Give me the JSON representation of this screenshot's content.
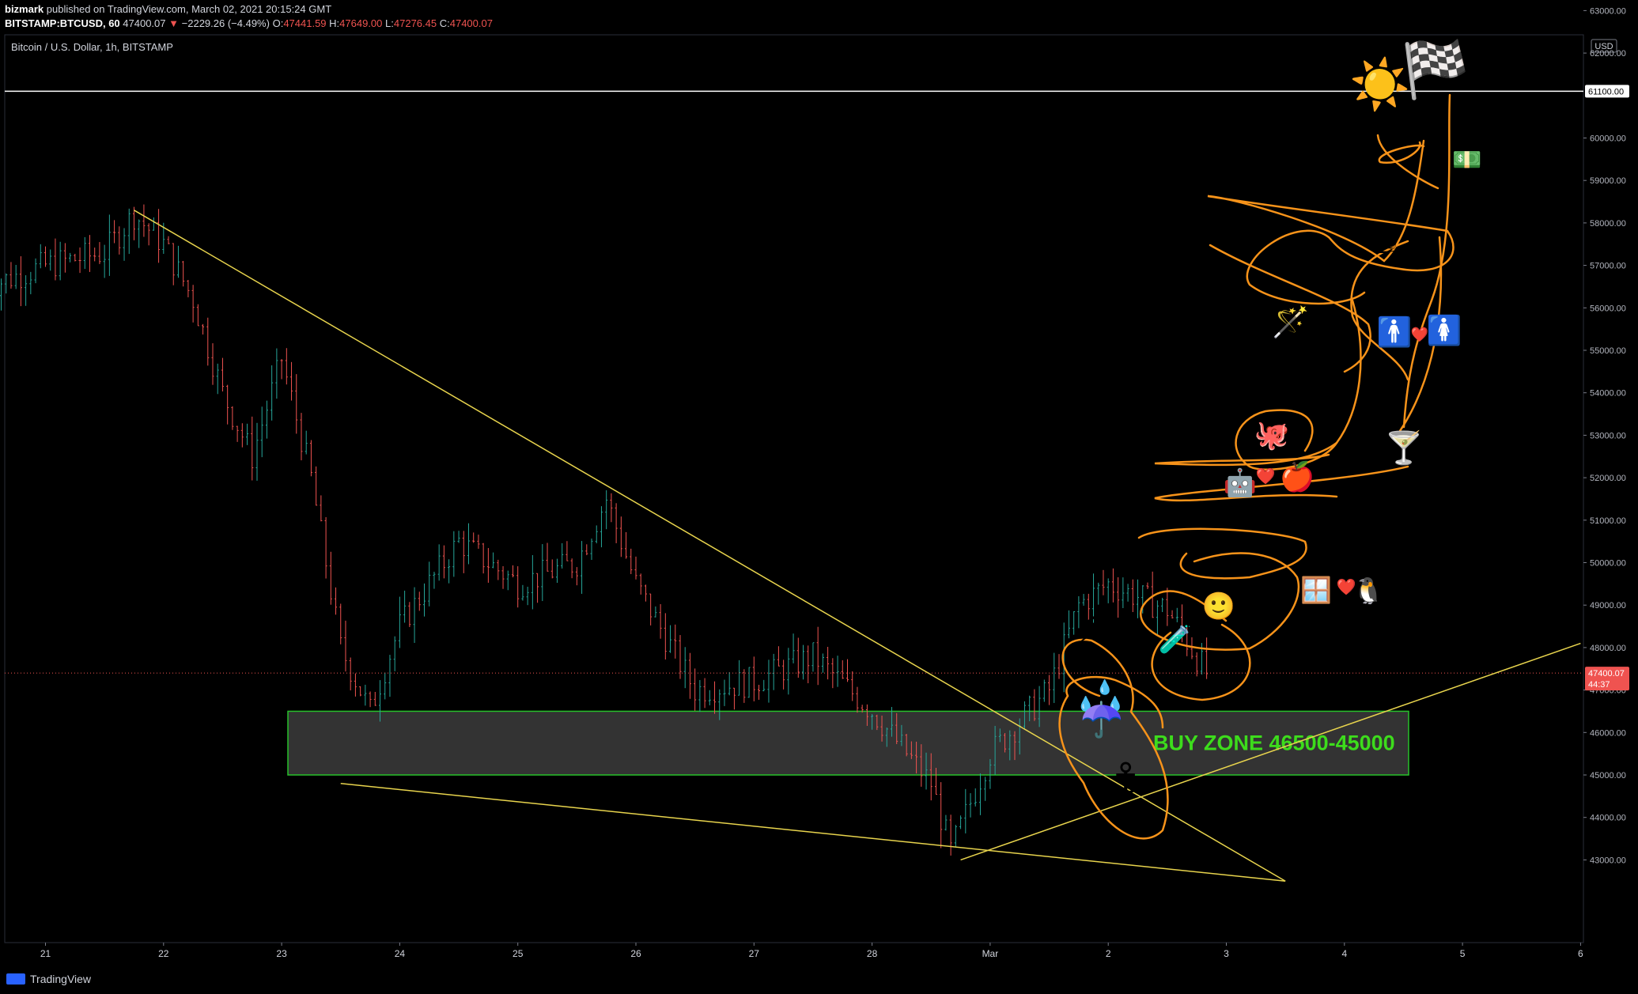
{
  "header": {
    "author": "bizmark",
    "published_text": "published on TradingView.com, March 02, 2021 20:15:24 GMT",
    "symbol_line": "BITSTAMP:BTCUSD, 60",
    "last_price": "47400.07",
    "change_arrow": "▼",
    "change": "−2229.26 (−4.49%)",
    "o_label": "O:",
    "o_value": "47441.59",
    "h_label": "H:",
    "h_value": "47649.00",
    "l_label": "L:",
    "l_value": "47276.45",
    "c_label": "C:",
    "c_value": "47400.07"
  },
  "footer": {
    "brand": "TradingView"
  },
  "colors": {
    "background": "#000000",
    "up": "#26a69a",
    "down": "#ef5350",
    "trendline": "#e8d44d",
    "drawing": "#f7931a",
    "zone_border": "#27c12b",
    "zone_text": "#3ddc1c",
    "resistance": "#ffffff"
  },
  "chart_data": {
    "type": "line",
    "title": "Bitcoin / U.S. Dollar, 1h, BITSTAMP",
    "currency": "USD",
    "x_ticks": [
      "21",
      "22",
      "23",
      "24",
      "25",
      "26",
      "27",
      "28",
      "Mar",
      "2",
      "3",
      "4",
      "5",
      "6"
    ],
    "y_ticks": [
      "63000.00",
      "62000.00",
      "60000.00",
      "59000.00",
      "58000.00",
      "57000.00",
      "56000.00",
      "55000.00",
      "54000.00",
      "53000.00",
      "52000.00",
      "51000.00",
      "50000.00",
      "49000.00",
      "48000.00",
      "47000.00",
      "46000.00",
      "45000.00",
      "44000.00",
      "43000.00"
    ],
    "ylim": [
      42500,
      63500
    ],
    "price_series": {
      "name": "BTCUSD",
      "x": [
        "Feb 20 12:00",
        "Feb 21 00:00",
        "Feb 21 12:00",
        "Feb 21 18:00",
        "Feb 22 00:00",
        "Feb 22 06:00",
        "Feb 22 12:00",
        "Feb 22 18:00",
        "Feb 23 00:00",
        "Feb 23 06:00",
        "Feb 23 12:00",
        "Feb 23 18:00",
        "Feb 24 00:00",
        "Feb 24 12:00",
        "Feb 25 00:00",
        "Feb 25 12:00",
        "Feb 25 18:00",
        "Feb 26 00:00",
        "Feb 26 12:00",
        "Feb 27 00:00",
        "Feb 27 12:00",
        "Feb 28 00:00",
        "Feb 28 12:00",
        "Feb 28 16:00",
        "Mar 1 00:00",
        "Mar 1 12:00",
        "Mar 1 18:00",
        "Mar 2 00:00",
        "Mar 2 12:00",
        "Mar 2 20:00"
      ],
      "y": [
        56500,
        57000,
        57300,
        58200,
        57500,
        56200,
        54000,
        52500,
        54800,
        52000,
        48000,
        46500,
        48500,
        50500,
        49500,
        50000,
        51500,
        49500,
        47000,
        47200,
        47800,
        46500,
        44800,
        43200,
        45500,
        47000,
        49000,
        49500,
        48900,
        47400
      ]
    },
    "trendlines": [
      {
        "name": "descending resistance",
        "from": [
          "Feb 21 18:00",
          58300
        ],
        "to": [
          "Mar 3 12:00",
          42500
        ]
      },
      {
        "name": "lower support",
        "from": [
          "Feb 23 12:00",
          44800
        ],
        "to": [
          "Mar 3 12:00",
          42500
        ]
      },
      {
        "name": "rising support",
        "from": [
          "Feb 28 18:00",
          43000
        ],
        "to": [
          "Mar 6 00:00",
          48100
        ]
      }
    ],
    "resistance_level": 61100.0,
    "resistance_label": "61100.00",
    "current_price_label": "47400.07",
    "countdown_label": "44:37",
    "buy_zone": {
      "label": "BUY ZONE 46500-45000",
      "top": 46500,
      "bottom": 45000
    },
    "emoji_annotations": [
      "☀️",
      "🏁",
      "💵",
      "☕",
      "🪄",
      "🚹",
      "❤️",
      "🚺",
      "🐙",
      "🍸",
      "🤖",
      "❤️",
      "🍎",
      "🙂",
      "🪟",
      "❤️",
      "🐧",
      "⚡",
      "🧪",
      "💧",
      "💧",
      "💧",
      "☂️",
      "⚓"
    ],
    "grid": false,
    "legend": "none"
  }
}
